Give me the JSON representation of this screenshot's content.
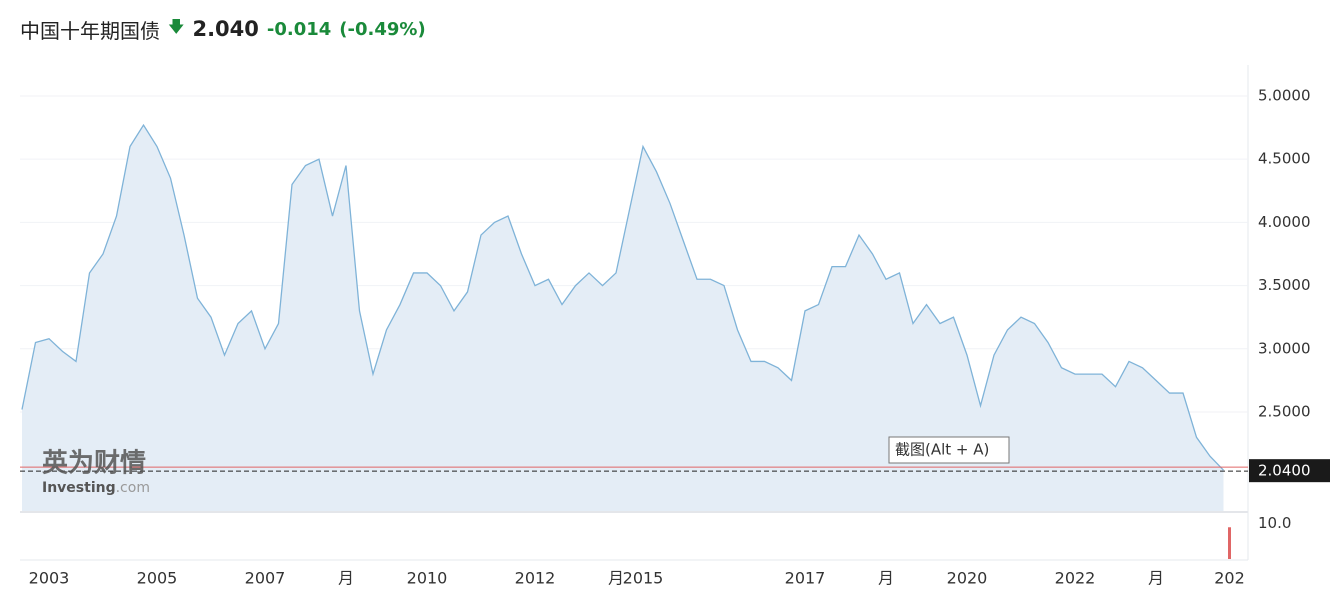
{
  "header": {
    "title": "中国十年期国债",
    "price": "2.040",
    "change": "-0.014",
    "change_pct": "(-0.49%)"
  },
  "tooltip": "截图(Alt + A)",
  "logo": {
    "name": "英为财情",
    "brand": "Investing",
    "domain": ".com"
  },
  "chart_data": [
    {
      "type": "area",
      "color": "#7fb3d8",
      "fill": "#e4edf6",
      "grid": true,
      "categories": [
        null,
        null,
        "2003",
        null,
        null,
        null,
        null,
        null,
        null,
        null,
        "2005",
        null,
        null,
        null,
        null,
        null,
        null,
        null,
        "2007",
        null,
        null,
        null,
        null,
        null,
        "月",
        null,
        null,
        null,
        null,
        null,
        "2010",
        null,
        null,
        null,
        null,
        null,
        null,
        null,
        "2012",
        null,
        null,
        null,
        null,
        null,
        "月",
        null,
        "2015",
        null,
        null,
        null,
        null,
        null,
        null,
        null,
        null,
        null,
        null,
        null,
        "2017",
        null,
        null,
        null,
        null,
        null,
        "月",
        null,
        null,
        null,
        null,
        null,
        "2020",
        null,
        null,
        null,
        null,
        null,
        null,
        null,
        "2022",
        null,
        null,
        null,
        null,
        null,
        "月",
        null,
        null,
        null,
        null,
        "202"
      ],
      "values": [
        2.52,
        3.05,
        3.08,
        2.98,
        2.9,
        3.6,
        3.75,
        4.05,
        4.6,
        4.77,
        4.6,
        4.35,
        3.9,
        3.4,
        3.25,
        2.95,
        3.2,
        3.3,
        3.0,
        3.2,
        4.3,
        4.45,
        4.5,
        4.05,
        4.45,
        3.3,
        2.8,
        3.15,
        3.35,
        3.6,
        3.6,
        3.5,
        3.3,
        3.45,
        3.9,
        4.0,
        4.05,
        3.75,
        3.5,
        3.55,
        3.35,
        3.5,
        3.6,
        3.5,
        3.6,
        4.1,
        4.6,
        4.4,
        4.15,
        3.85,
        3.55,
        3.55,
        3.5,
        3.15,
        2.9,
        2.9,
        2.85,
        2.75,
        3.3,
        3.35,
        3.65,
        3.65,
        3.9,
        3.75,
        3.55,
        3.6,
        3.2,
        3.35,
        3.2,
        3.25,
        2.95,
        2.55,
        2.95,
        3.15,
        3.25,
        3.2,
        3.05,
        2.85,
        2.8,
        2.8,
        2.8,
        2.7,
        2.9,
        2.85,
        2.75,
        2.65,
        2.65,
        2.3,
        2.15,
        2.04
      ],
      "ylim": [
        1.717,
        5.245
      ],
      "yticks": [
        {
          "value": 2.5,
          "label": "2.5000"
        },
        {
          "value": 3.0,
          "label": "3.0000"
        },
        {
          "value": 3.5,
          "label": "3.5000"
        },
        {
          "value": 4.0,
          "label": "4.0000"
        },
        {
          "value": 4.5,
          "label": "4.5000"
        },
        {
          "value": 5.0,
          "label": "5.0000"
        }
      ],
      "last_value": {
        "value": 2.04,
        "label": "2.0400"
      }
    },
    {
      "type": "bar",
      "color": "#e06666",
      "categories": [
        null
      ],
      "values": [
        8.9
      ],
      "ylim": [
        0,
        12.9
      ],
      "yticks": [
        {
          "value": 10,
          "label": "10.0"
        }
      ]
    }
  ]
}
